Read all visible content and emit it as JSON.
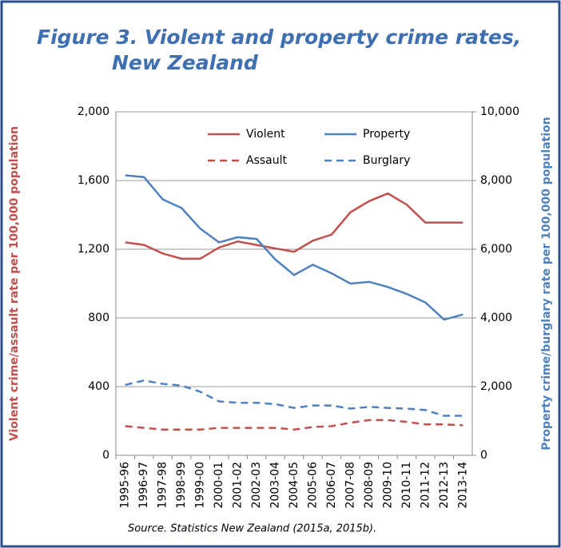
{
  "chart_data": {
    "type": "line",
    "title": [
      "Figure 3. Violent and property crime rates,",
      "New Zealand"
    ],
    "ylabel": "Violent crime/assault  rate per 100,000 population",
    "y2label": "Property crime/burglary rate per 100,000 population",
    "source": "Source. Statistics New Zealand (2015a, 2015b).",
    "categories": [
      "1995-96",
      "1996-97",
      "1997-98",
      "1998-99",
      "1999-00",
      "2000-01",
      "2001-02",
      "2002-03",
      "2003-04",
      "2004-05",
      "2005-06",
      "2006-07",
      "2007-08",
      "2008-09",
      "2009-10",
      "2010-11",
      "2011-12",
      "2012-13",
      "2013-14"
    ],
    "ylim": [
      0,
      2000
    ],
    "yticks": [
      0,
      400,
      800,
      {
        "value": 1200,
        "label": "1,200"
      },
      {
        "value": 1600,
        "label": "1,600"
      },
      {
        "value": 2000,
        "label": "2,000"
      }
    ],
    "y2lim": [
      0,
      10000
    ],
    "y2ticks": [
      0,
      {
        "value": 2000,
        "label": "2,000"
      },
      {
        "value": 4000,
        "label": "4,000"
      },
      {
        "value": 6000,
        "label": "6,000"
      },
      {
        "value": 8000,
        "label": "8,000"
      },
      {
        "value": 10000,
        "label": "10,000"
      }
    ],
    "grid": true,
    "series": [
      {
        "name": "Violent",
        "color": "#c0504d",
        "dashed": false,
        "values": [
          1240,
          1225,
          1175,
          1145,
          1145,
          1210,
          1245,
          1225,
          1205,
          1185,
          1250,
          1285,
          1415,
          1480,
          1525,
          1460,
          1355,
          1355,
          1355
        ]
      },
      {
        "name": "Property",
        "color": "#4f81bd",
        "dashed": false,
        "axis": "y2",
        "values": [
          8150,
          8100,
          7450,
          7200,
          6600,
          6200,
          6350,
          6300,
          5700,
          5250,
          5550,
          5300,
          5000,
          5050,
          4900,
          4700,
          4450,
          3950,
          4100
        ]
      },
      {
        "name": "Assault",
        "color": "#c0504d",
        "dashed": true,
        "values": [
          170,
          160,
          150,
          150,
          150,
          160,
          160,
          160,
          160,
          150,
          165,
          170,
          190,
          205,
          205,
          195,
          180,
          180,
          175
        ]
      },
      {
        "name": "Burglary",
        "color": "#4f81bd",
        "dashed": true,
        "axis": "y2",
        "values": [
          2050,
          2180,
          2080,
          2030,
          1850,
          1570,
          1530,
          1530,
          1490,
          1380,
          1450,
          1450,
          1360,
          1410,
          1380,
          1360,
          1320,
          1150,
          1150
        ]
      }
    ]
  }
}
